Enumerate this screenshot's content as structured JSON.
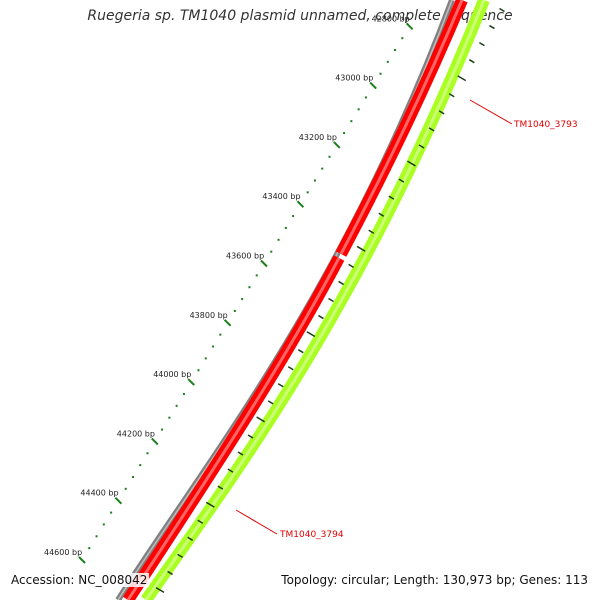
{
  "title": "Ruegeria sp. TM1040 plasmid unnamed, complete sequence",
  "accession": "Accession: NC_008042",
  "summary": "Topology: circular; Length: 130,973 bp; Genes: 113",
  "colors": {
    "backbone": "#808080",
    "forward_gene": "#ff0000",
    "reverse_gene": "#aaff22",
    "tick": "#1a7f1a",
    "gene_label": "#e10000"
  },
  "ticks": [
    {
      "label": "42800 bp"
    },
    {
      "label": "43000 bp"
    },
    {
      "label": "43200 bp"
    },
    {
      "label": "43400 bp"
    },
    {
      "label": "43600 bp"
    },
    {
      "label": "43800 bp"
    },
    {
      "label": "44000 bp"
    },
    {
      "label": "44200 bp"
    },
    {
      "label": "44400 bp"
    },
    {
      "label": "44600 bp"
    }
  ],
  "genes": [
    {
      "name": "TM1040_3793",
      "strand": "forward"
    },
    {
      "name": "TM1040_3794",
      "strand": "forward"
    }
  ]
}
